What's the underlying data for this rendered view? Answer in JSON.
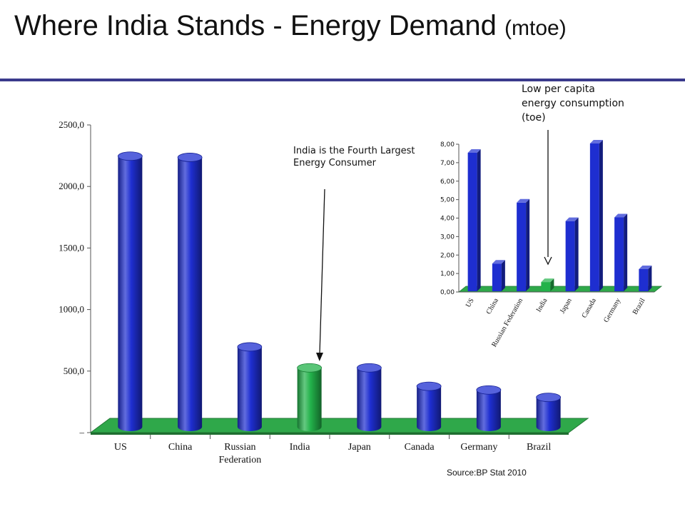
{
  "slide": {
    "title_main": "Where India Stands - Energy Demand",
    "title_suffix": "(mtoe)",
    "source": "Source:BP Stat 2010"
  },
  "annotations": {
    "main_line1": "India is the Fourth Largest",
    "main_line2": "Energy Consumer",
    "inset_line1": "Low per capita",
    "inset_line2": "energy consumption",
    "inset_line3": "(toe)"
  },
  "colors": {
    "bar": "#1e2ed0",
    "bar_highlight": "#22b24a",
    "floor": "#2fa84a",
    "title_rule": "#3a3a8c"
  },
  "chart_data": [
    {
      "type": "bar",
      "categories": [
        "US",
        "China",
        "Russian Federation",
        "India",
        "Japan",
        "Canada",
        "Germany",
        "Brazil"
      ],
      "category_labels": [
        [
          "US"
        ],
        [
          "China"
        ],
        [
          "Russian",
          "Federation"
        ],
        [
          "India"
        ],
        [
          "Japan"
        ],
        [
          "Canada"
        ],
        [
          "Germany"
        ],
        [
          "Brazil"
        ]
      ],
      "values": [
        2200,
        2190,
        650,
        480,
        480,
        330,
        300,
        240
      ],
      "highlight": "India",
      "ylim": [
        0,
        2500
      ],
      "yticks": [
        "–",
        "500,0",
        "1000,0",
        "1500,0",
        "2000,0",
        "2500,0"
      ],
      "ytick_values": [
        0,
        500,
        1000,
        1500,
        2000,
        2500
      ],
      "grid": false,
      "style": "3d-cylinder"
    },
    {
      "type": "bar",
      "categories": [
        "US",
        "China",
        "Russian Federation",
        "India",
        "Japan",
        "Canada",
        "Germany",
        "Brazil"
      ],
      "values": [
        7.5,
        1.5,
        4.8,
        0.5,
        3.8,
        8.0,
        4.0,
        1.2
      ],
      "highlight": "India",
      "ylim": [
        0,
        8
      ],
      "yticks": [
        "0,00",
        "1,00",
        "2,00",
        "3,00",
        "4,00",
        "5,00",
        "6,00",
        "7,00",
        "8,00"
      ],
      "ytick_values": [
        0,
        1,
        2,
        3,
        4,
        5,
        6,
        7,
        8
      ],
      "grid": false,
      "style": "3d-box"
    }
  ]
}
